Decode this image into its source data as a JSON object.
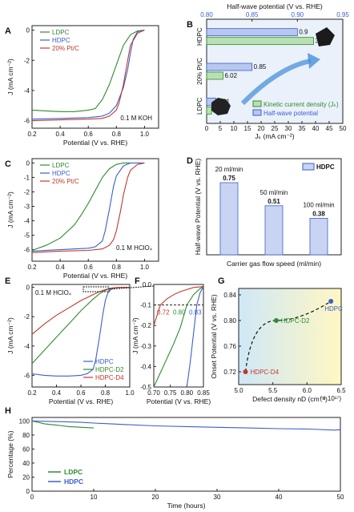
{
  "chart_data": [
    {
      "panel": "A",
      "type": "line",
      "xlabel": "Potential (V vs. RHE)",
      "ylabel": "J (mA cm⁻²)",
      "xlim": [
        0.2,
        1.1
      ],
      "ylim": [
        -6.5,
        0.3
      ],
      "xticks": [
        "0.2",
        "0.4",
        "0.6",
        "0.8",
        "1.0"
      ],
      "yticks": [
        "0",
        "-2",
        "-4",
        "-6"
      ],
      "annotation": "0.1 M KOH",
      "legend": [
        "LDPC",
        "HDPC",
        "20% Pt/C"
      ],
      "legend_position": "top-left",
      "series": [
        {
          "name": "LDPC",
          "color": "#2e8b2e",
          "x": [
            0.2,
            0.3,
            0.4,
            0.5,
            0.55,
            0.6,
            0.65,
            0.7,
            0.75,
            0.8,
            0.85,
            0.9,
            0.95,
            1.0
          ],
          "y": [
            -5.3,
            -5.35,
            -5.4,
            -5.4,
            -5.35,
            -5.3,
            -5.2,
            -4.6,
            -3.6,
            -2.3,
            -1.0,
            -0.3,
            -0.05,
            0
          ]
        },
        {
          "name": "HDPC",
          "color": "#3a5fcd",
          "x": [
            0.2,
            0.4,
            0.6,
            0.7,
            0.75,
            0.8,
            0.85,
            0.88,
            0.9,
            0.92,
            0.95,
            1.0
          ],
          "y": [
            -5.9,
            -5.85,
            -5.8,
            -5.7,
            -5.5,
            -5.0,
            -3.8,
            -2.6,
            -1.5,
            -0.6,
            -0.1,
            0
          ]
        },
        {
          "name": "20% Pt/C",
          "color": "#c0392b",
          "x": [
            0.2,
            0.4,
            0.6,
            0.7,
            0.75,
            0.8,
            0.82,
            0.85,
            0.88,
            0.9,
            0.95,
            1.0
          ],
          "y": [
            -6.0,
            -5.95,
            -5.9,
            -5.85,
            -5.7,
            -5.3,
            -4.8,
            -3.6,
            -2.0,
            -1.0,
            -0.2,
            0
          ]
        }
      ]
    },
    {
      "panel": "B",
      "type": "bar",
      "orientation": "horizontal",
      "categories": [
        "HDPC",
        "20% Pt/C",
        "LDPC"
      ],
      "bottom_axis_label": "Jₖ (mA cm⁻²)",
      "bottom_axis_range": [
        0,
        50
      ],
      "bottom_ticks": [
        "0",
        "5",
        "10",
        "15",
        "20",
        "25",
        "30",
        "35",
        "40",
        "45",
        "50"
      ],
      "top_axis_label": "Half-wave potential (V vs. RHE)",
      "top_axis_range": [
        0.8,
        0.95
      ],
      "top_ticks": [
        "0.80",
        "0.85",
        "0.90",
        "0.95"
      ],
      "series": [
        {
          "name": "Kinetic current density (Jₖ)",
          "color": "#2e8b2e",
          "values": [
            39.29,
            6.02,
            1.8
          ],
          "labels": [
            "39.29",
            "6.02",
            "1.8"
          ]
        },
        {
          "name": "Half-wave potential",
          "color": "#3a5fcd",
          "values": [
            0.9,
            0.85,
            0.81
          ],
          "labels": [
            "0.9",
            "0.85",
            "0.81"
          ]
        }
      ],
      "legend_position": "bottom-right"
    },
    {
      "panel": "C",
      "type": "line",
      "xlabel": "Potential (V vs. RHE)",
      "ylabel": "J (mA cm⁻²)",
      "xlim": [
        0.2,
        1.1
      ],
      "ylim": [
        -6.8,
        0.3
      ],
      "xticks": [
        "0.2",
        "0.4",
        "0.6",
        "0.8",
        "1.0"
      ],
      "yticks": [
        "0",
        "-1",
        "-2",
        "-3",
        "-4",
        "-5",
        "-6"
      ],
      "annotation": "0.1 M HClO₄",
      "legend": [
        "LDPC",
        "HDPC",
        "20% Pt/C"
      ],
      "legend_position": "top-left",
      "series": [
        {
          "name": "LDPC",
          "color": "#2e8b2e",
          "x": [
            0.2,
            0.3,
            0.4,
            0.5,
            0.55,
            0.6,
            0.65,
            0.7,
            0.75,
            0.8,
            0.85,
            0.9
          ],
          "y": [
            -6.05,
            -5.7,
            -5.2,
            -4.3,
            -3.6,
            -2.8,
            -1.9,
            -1.0,
            -0.4,
            -0.1,
            0,
            0
          ]
        },
        {
          "name": "HDPC",
          "color": "#3a5fcd",
          "x": [
            0.2,
            0.4,
            0.6,
            0.65,
            0.7,
            0.72,
            0.75,
            0.78,
            0.8,
            0.85,
            0.9,
            1.0
          ],
          "y": [
            -6.1,
            -6.0,
            -5.9,
            -5.8,
            -5.4,
            -4.7,
            -3.2,
            -1.6,
            -0.9,
            -0.2,
            0,
            0
          ]
        },
        {
          "name": "20% Pt/C",
          "color": "#c0392b",
          "x": [
            0.2,
            0.4,
            0.6,
            0.7,
            0.75,
            0.78,
            0.8,
            0.83,
            0.85,
            0.88,
            0.9,
            0.95,
            1.0
          ],
          "y": [
            -6.2,
            -6.1,
            -6.05,
            -5.95,
            -5.7,
            -5.3,
            -4.7,
            -3.3,
            -2.2,
            -1.0,
            -0.5,
            -0.1,
            0
          ]
        }
      ]
    },
    {
      "panel": "D",
      "type": "bar",
      "categories": [
        "20 ml/min",
        "50 ml/min",
        "100 ml/min"
      ],
      "values": [
        0.75,
        0.51,
        0.38
      ],
      "value_labels": [
        "0.75",
        "0.51",
        "0.38"
      ],
      "xlabel": "Carrier gas flow speed (ml/min)",
      "ylabel": "Half-wave Potential (V vs. RHE)",
      "ylim": [
        0,
        1.0
      ],
      "legend": [
        "HDPC"
      ],
      "color": "#3a5fcd",
      "legend_position": "top-right"
    },
    {
      "panel": "E",
      "type": "line",
      "xlabel": "Potential (V vs. RHE)",
      "ylabel": "J (mA cm⁻²)",
      "xlim": [
        0.2,
        1.0
      ],
      "ylim": [
        -6.8,
        0.2
      ],
      "xticks": [
        "0.2",
        "0.4",
        "0.6",
        "0.8",
        "1.0"
      ],
      "yticks": [
        "0",
        "-2",
        "-4",
        "-6"
      ],
      "annotation": "0.1 M HClO₄",
      "legend": [
        "HDPC",
        "HDPC-D2",
        "HDPC-D4"
      ],
      "legend_position": "bottom-right",
      "series": [
        {
          "name": "HDPC",
          "color": "#3a5fcd",
          "x": [
            0.2,
            0.3,
            0.4,
            0.5,
            0.6,
            0.65,
            0.7,
            0.72,
            0.75,
            0.78,
            0.8,
            0.82,
            0.85,
            0.9,
            1.0
          ],
          "y": [
            -5.9,
            -6.0,
            -6.05,
            -6.05,
            -6.0,
            -5.9,
            -5.6,
            -5.0,
            -3.5,
            -1.8,
            -0.9,
            -0.4,
            -0.1,
            0,
            0
          ]
        },
        {
          "name": "HDPC-D2",
          "color": "#2e8b2e",
          "x": [
            0.2,
            0.3,
            0.4,
            0.5,
            0.6,
            0.7,
            0.75,
            0.8,
            0.85,
            0.9,
            1.0
          ],
          "y": [
            -5.2,
            -4.3,
            -3.4,
            -2.5,
            -1.6,
            -0.8,
            -0.45,
            -0.2,
            -0.05,
            0,
            0
          ]
        },
        {
          "name": "HDPC-D4",
          "color": "#c0392b",
          "x": [
            0.2,
            0.3,
            0.4,
            0.5,
            0.6,
            0.7,
            0.75,
            0.8,
            0.85,
            0.9,
            1.0
          ],
          "y": [
            -3.2,
            -2.5,
            -1.9,
            -1.4,
            -0.9,
            -0.5,
            -0.3,
            -0.15,
            -0.05,
            0,
            0
          ]
        }
      ]
    },
    {
      "panel": "F",
      "type": "line",
      "xlabel": "Potential (V vs. RHE)",
      "ylabel": "J (mA cm⁻²)",
      "xlim": [
        0.7,
        0.85
      ],
      "ylim": [
        -0.5,
        0.0
      ],
      "xticks": [
        "0.70",
        "0.75",
        "0.80",
        "0.85"
      ],
      "yticks": [
        "0.0",
        "-0.1",
        "-0.2",
        "-0.3",
        "-0.4",
        "-0.5"
      ],
      "reference_line": -0.1,
      "annotations": [
        {
          "text": "0.72",
          "color": "#c0392b"
        },
        {
          "text": "0.80",
          "color": "#2e8b2e"
        },
        {
          "text": "0.83",
          "color": "#3a5fcd"
        }
      ],
      "series": [
        {
          "name": "HDPC",
          "color": "#3a5fcd",
          "x": [
            0.8,
            0.81,
            0.82,
            0.83,
            0.84,
            0.85
          ],
          "y": [
            -0.5,
            -0.38,
            -0.24,
            -0.1,
            -0.04,
            -0.01
          ]
        },
        {
          "name": "HDPC-D2",
          "color": "#2e8b2e",
          "x": [
            0.7,
            0.72,
            0.74,
            0.76,
            0.78,
            0.8,
            0.82,
            0.84,
            0.85
          ],
          "y": [
            -0.5,
            -0.43,
            -0.36,
            -0.29,
            -0.21,
            -0.1,
            -0.05,
            -0.02,
            -0.01
          ]
        },
        {
          "name": "HDPC-D4",
          "color": "#c0392b",
          "x": [
            0.7,
            0.72,
            0.74,
            0.76,
            0.78,
            0.8,
            0.82,
            0.85
          ],
          "y": [
            -0.2,
            -0.1,
            -0.07,
            -0.05,
            -0.035,
            -0.025,
            -0.015,
            -0.01
          ]
        }
      ]
    },
    {
      "panel": "G",
      "type": "scatter",
      "xlabel": "Defect density nD (cm⁻³)",
      "xunit": "(× 10¹⁷)",
      "ylabel": "Onset Potential (V vs. RHE)",
      "xlim": [
        5.0,
        6.5
      ],
      "ylim": [
        0.7,
        0.85
      ],
      "xticks": [
        "5.0",
        "5.5",
        "6.0",
        "6.5"
      ],
      "yticks": [
        "0.72",
        "0.76",
        "0.80",
        "0.84"
      ],
      "points": [
        {
          "label": "HDPC-D4",
          "x": 5.1,
          "y": 0.72,
          "color": "#c0392b"
        },
        {
          "label": "HDPC-D2",
          "x": 5.55,
          "y": 0.8,
          "color": "#2e8b2e"
        },
        {
          "label": "HDPC",
          "x": 6.35,
          "y": 0.83,
          "color": "#3a5fcd"
        }
      ]
    },
    {
      "panel": "H",
      "type": "line",
      "xlabel": "Time (hours)",
      "ylabel": "Percentage (%)",
      "xlim": [
        0,
        50
      ],
      "ylim": [
        0,
        105
      ],
      "xticks": [
        "0",
        "10",
        "20",
        "30",
        "40",
        "50"
      ],
      "yticks": [
        "0",
        "20",
        "40",
        "60",
        "80",
        "100"
      ],
      "legend": [
        "LDPC",
        "HDPC"
      ],
      "legend_position": "bottom-left",
      "series": [
        {
          "name": "LDPC",
          "color": "#2e8b2e",
          "x": [
            0,
            1,
            2,
            3,
            4,
            5,
            6,
            7,
            8,
            9,
            10
          ],
          "y": [
            100,
            98,
            96,
            95,
            94,
            93,
            92,
            91.5,
            91,
            90.5,
            90
          ]
        },
        {
          "name": "HDPC",
          "color": "#3a5fcd",
          "x": [
            0,
            2,
            5,
            8,
            10,
            15,
            20,
            25,
            30,
            35,
            40,
            45,
            49,
            50
          ],
          "y": [
            100,
            99.5,
            99,
            98,
            97,
            95,
            93,
            92,
            91,
            90,
            89,
            88.5,
            87,
            87.5
          ]
        }
      ]
    }
  ],
  "panel_labels": [
    "A",
    "B",
    "C",
    "D",
    "E",
    "F",
    "G",
    "H"
  ],
  "labels": {
    "a_title_kinetic": "Kinetic current density (Jₖ)",
    "b_half": "Half-wave potential",
    "g_d4": "HDPC-D4",
    "g_d2": "HDPC-D2",
    "g_hdpc": "HDPC"
  }
}
